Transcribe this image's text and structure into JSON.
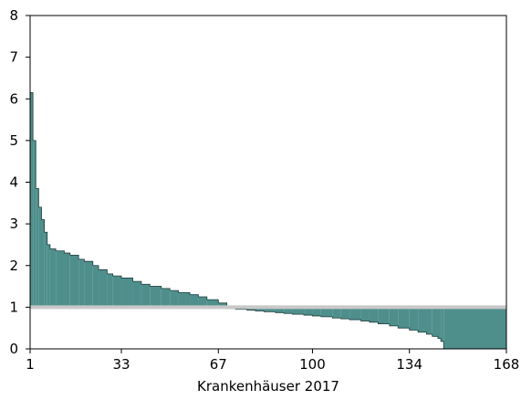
{
  "chart_data": {
    "type": "area",
    "title": "",
    "xlabel": "Krankenhäuser 2017",
    "ylabel": "",
    "xlim": [
      1,
      168
    ],
    "ylim": [
      0,
      8
    ],
    "x_ticks": [
      1,
      33,
      67,
      100,
      134,
      168
    ],
    "y_ticks": [
      0,
      1,
      2,
      3,
      4,
      5,
      6,
      7,
      8
    ],
    "reference_line": {
      "y": 1
    },
    "grid": false,
    "legend": "none",
    "colors": {
      "fill": "#4e8f8c",
      "reference_line": "#c8c8c8",
      "axis": "#000000"
    },
    "series": [
      {
        "x": [
          1,
          2,
          3,
          4,
          5,
          6,
          7,
          8,
          10,
          13,
          15,
          18,
          20,
          23,
          25,
          28,
          30,
          33,
          37,
          40,
          43,
          47,
          50,
          53,
          57,
          60,
          63,
          67,
          70,
          73,
          77,
          80,
          83,
          87,
          90,
          93,
          97,
          100,
          103,
          107,
          110,
          113,
          117,
          120,
          123,
          127,
          130,
          134,
          137,
          140,
          142,
          144,
          145,
          146
        ],
        "values": [
          6.15,
          5.0,
          3.85,
          3.4,
          3.1,
          2.8,
          2.5,
          2.4,
          2.35,
          2.3,
          2.25,
          2.15,
          2.1,
          2.0,
          1.9,
          1.8,
          1.75,
          1.7,
          1.62,
          1.55,
          1.5,
          1.45,
          1.4,
          1.35,
          1.3,
          1.25,
          1.18,
          1.1,
          0.97,
          0.95,
          0.93,
          0.91,
          0.89,
          0.87,
          0.85,
          0.83,
          0.81,
          0.79,
          0.77,
          0.74,
          0.72,
          0.7,
          0.67,
          0.64,
          0.6,
          0.55,
          0.5,
          0.45,
          0.4,
          0.35,
          0.3,
          0.25,
          0.18,
          0.0
        ]
      }
    ]
  }
}
